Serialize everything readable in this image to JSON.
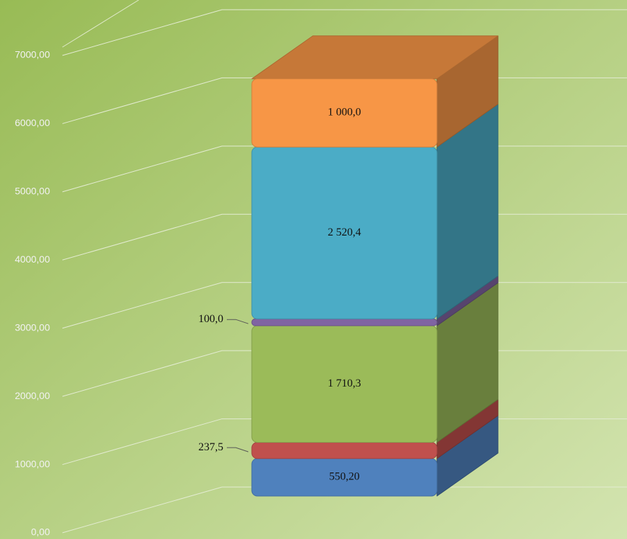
{
  "chart_data": {
    "type": "bar3d_stacked",
    "categories": [
      null
    ],
    "series": [
      {
        "color": "#4f81bd",
        "values": [
          550.2
        ],
        "value_labels": [
          "550,20"
        ]
      },
      {
        "color": "#c0504d",
        "values": [
          237.5
        ],
        "value_labels": [
          "237,5"
        ]
      },
      {
        "color": "#9bbb59",
        "values": [
          1710.3
        ],
        "value_labels": [
          "1 710,3"
        ]
      },
      {
        "color": "#8064a2",
        "values": [
          100.0
        ],
        "value_labels": [
          "100,0"
        ]
      },
      {
        "color": "#4bacc6",
        "values": [
          2520.4
        ],
        "value_labels": [
          "2 520,4"
        ]
      },
      {
        "color": "#f79646",
        "values": [
          1000.0
        ],
        "value_labels": [
          "1 000,0"
        ]
      }
    ],
    "ylim": [
      0,
      7000
    ],
    "yticks": [
      {
        "value": 0,
        "label": "0,00"
      },
      {
        "value": 1000,
        "label": "1000,00"
      },
      {
        "value": 2000,
        "label": "2000,00"
      },
      {
        "value": 3000,
        "label": "3000,00"
      },
      {
        "value": 4000,
        "label": "4000,00"
      },
      {
        "value": 5000,
        "label": "5000,00"
      },
      {
        "value": 6000,
        "label": "6000,00"
      },
      {
        "value": 7000,
        "label": "7000,00"
      }
    ],
    "grid": true
  }
}
